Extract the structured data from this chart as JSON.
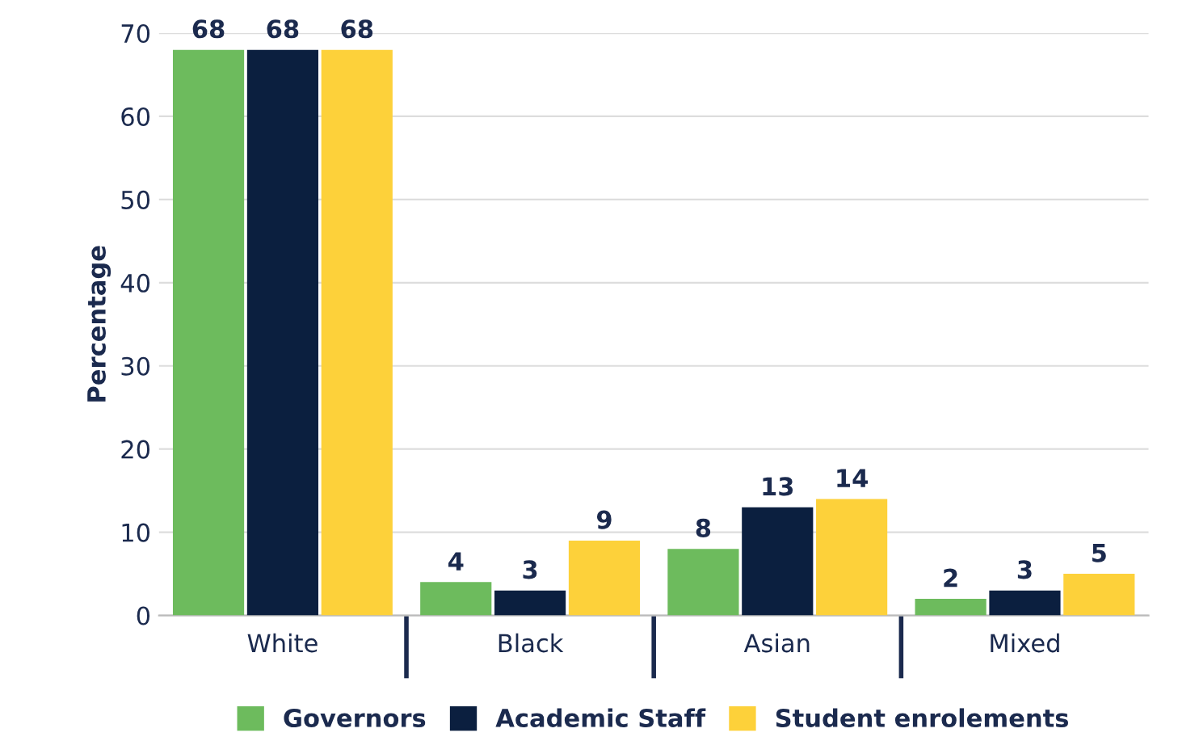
{
  "chart_data": {
    "type": "bar",
    "ylabel": "Percentage",
    "categories": [
      "White",
      "Black",
      "Asian",
      "Mixed"
    ],
    "series": [
      {
        "name": "Governors",
        "color": "#6dbb5d",
        "values": [
          68,
          4,
          8,
          2
        ]
      },
      {
        "name": "Academic Staff",
        "color": "#0b1f3f",
        "values": [
          68,
          3,
          13,
          3
        ]
      },
      {
        "name": "Student enrolements",
        "color": "#fdd13a",
        "values": [
          68,
          9,
          14,
          5
        ]
      }
    ],
    "ylim": [
      0,
      70
    ],
    "yticks": [
      0,
      10,
      20,
      30,
      40,
      50,
      60,
      70
    ],
    "grid": "y",
    "legend": "bottom",
    "data_labels": true
  }
}
